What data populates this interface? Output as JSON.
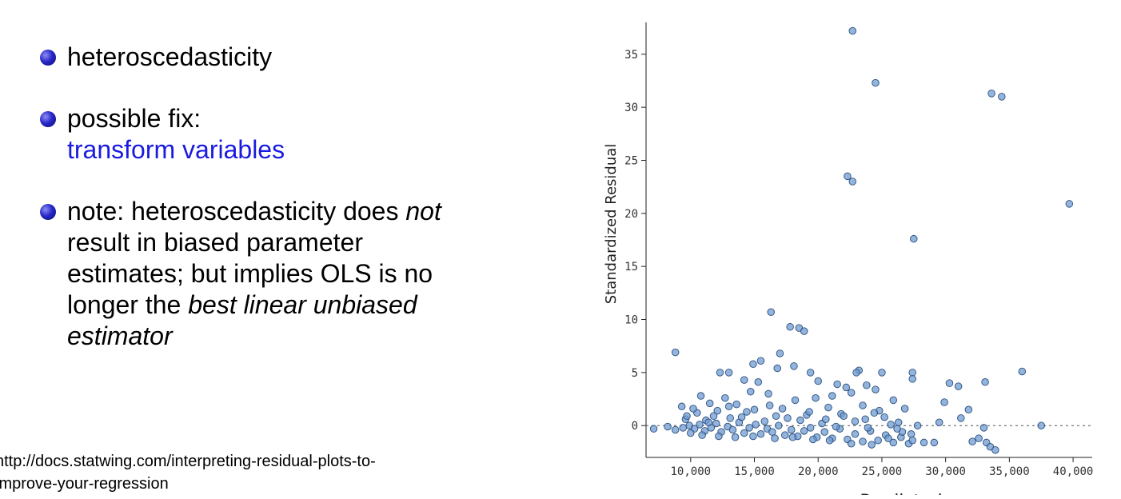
{
  "slide": {
    "bullets": [
      {
        "text": "heteroscedasticity"
      },
      {
        "line1": "possible fix:",
        "line2": "transform variables"
      },
      {
        "t1": "note: heteroscedasticity does ",
        "t2": "not",
        "t3": "result in biased parameter",
        "t4": "estimates; but implies OLS is no",
        "t5": "longer the ",
        "t6": "best linear unbiased",
        "t7": "estimator"
      }
    ],
    "source_line1": "http://docs.statwing.com/interpreting-residual-plots-to-",
    "source_line2": "improve-your-regression"
  },
  "colors": {
    "bullet": "#2828c8",
    "link": "#1a1ae0",
    "point_fill": "#6f9bd1",
    "point_stroke": "#2b4f7e"
  },
  "chart_data": {
    "type": "scatter",
    "xlabel": "Predicted",
    "ylabel": "Standardized Residual",
    "xlim": [
      6500,
      41500
    ],
    "ylim": [
      -3,
      38
    ],
    "xticks": [
      10000,
      15000,
      20000,
      25000,
      30000,
      35000,
      40000
    ],
    "xtick_labels": [
      "10,000",
      "15,000",
      "20,000",
      "25,000",
      "30,000",
      "35,000",
      "40,000"
    ],
    "yticks": [
      0,
      5,
      10,
      15,
      20,
      25,
      30,
      35
    ],
    "ytick_labels": [
      "0",
      "5",
      "10",
      "15",
      "20",
      "25",
      "30",
      "35"
    ],
    "reference_line_y": 0,
    "points": [
      [
        22700,
        37.2
      ],
      [
        24500,
        32.3
      ],
      [
        33600,
        31.3
      ],
      [
        22300,
        23.5
      ],
      [
        22700,
        23.0
      ],
      [
        39700,
        20.9
      ],
      [
        27500,
        17.6
      ],
      [
        16300,
        10.7
      ],
      [
        17800,
        9.3
      ],
      [
        18500,
        9.2
      ],
      [
        18900,
        8.9
      ],
      [
        8800,
        6.9
      ],
      [
        17000,
        6.8
      ],
      [
        15500,
        6.1
      ],
      [
        14900,
        5.8
      ],
      [
        18100,
        5.6
      ],
      [
        16800,
        5.4
      ],
      [
        12300,
        5.0
      ],
      [
        13000,
        5.0
      ],
      [
        19400,
        5.0
      ],
      [
        23200,
        5.2
      ],
      [
        23000,
        5.0
      ],
      [
        25000,
        5.0
      ],
      [
        27400,
        5.0
      ],
      [
        27400,
        4.4
      ],
      [
        36000,
        5.1
      ],
      [
        14200,
        4.3
      ],
      [
        15300,
        4.1
      ],
      [
        20000,
        4.2
      ],
      [
        30300,
        4.0
      ],
      [
        31000,
        3.7
      ],
      [
        33100,
        4.1
      ],
      [
        21500,
        3.9
      ],
      [
        22200,
        3.6
      ],
      [
        23800,
        3.8
      ],
      [
        24500,
        3.4
      ],
      [
        14700,
        3.2
      ],
      [
        16100,
        3.0
      ],
      [
        10800,
        2.8
      ],
      [
        12700,
        2.6
      ],
      [
        18200,
        2.4
      ],
      [
        19800,
        2.6
      ],
      [
        21100,
        2.8
      ],
      [
        22600,
        3.1
      ],
      [
        25900,
        2.4
      ],
      [
        29900,
        2.2
      ],
      [
        31800,
        1.5
      ],
      [
        9300,
        1.8
      ],
      [
        11500,
        2.1
      ],
      [
        13600,
        2.0
      ],
      [
        17200,
        1.6
      ],
      [
        20800,
        1.7
      ],
      [
        23500,
        1.9
      ],
      [
        24800,
        1.4
      ],
      [
        26800,
        1.6
      ],
      [
        31200,
        0.7
      ],
      [
        10500,
        1.2
      ],
      [
        12100,
        1.4
      ],
      [
        14400,
        1.3
      ],
      [
        16700,
        0.9
      ],
      [
        19100,
        1.0
      ],
      [
        21800,
        1.1
      ],
      [
        23700,
        0.6
      ],
      [
        25200,
        0.8
      ],
      [
        29500,
        0.3
      ],
      [
        9600,
        0.6
      ],
      [
        11200,
        0.5
      ],
      [
        13100,
        0.7
      ],
      [
        15800,
        0.4
      ],
      [
        18600,
        0.5
      ],
      [
        20300,
        0.2
      ],
      [
        22900,
        0.4
      ],
      [
        26300,
        0.3
      ],
      [
        7100,
        -0.3
      ],
      [
        8200,
        -0.1
      ],
      [
        8800,
        -0.4
      ],
      [
        9400,
        -0.2
      ],
      [
        9900,
        0.0
      ],
      [
        10300,
        -0.3
      ],
      [
        10700,
        0.1
      ],
      [
        11100,
        -0.5
      ],
      [
        11600,
        -0.2
      ],
      [
        12000,
        0.2
      ],
      [
        12400,
        -0.6
      ],
      [
        12900,
        -0.1
      ],
      [
        13300,
        -0.4
      ],
      [
        13800,
        0.3
      ],
      [
        14200,
        -0.7
      ],
      [
        14600,
        -0.2
      ],
      [
        15100,
        0.1
      ],
      [
        15500,
        -0.8
      ],
      [
        16000,
        -0.3
      ],
      [
        16400,
        -0.6
      ],
      [
        16900,
        0.0
      ],
      [
        17400,
        -0.9
      ],
      [
        17900,
        -0.4
      ],
      [
        18400,
        -1.0
      ],
      [
        18900,
        -0.5
      ],
      [
        19400,
        -0.2
      ],
      [
        19900,
        -1.1
      ],
      [
        20500,
        -0.6
      ],
      [
        21100,
        -1.2
      ],
      [
        21700,
        -0.3
      ],
      [
        22300,
        -1.3
      ],
      [
        22900,
        -0.8
      ],
      [
        23500,
        -1.5
      ],
      [
        24100,
        -0.5
      ],
      [
        24700,
        -1.4
      ],
      [
        25300,
        -0.9
      ],
      [
        25900,
        -1.6
      ],
      [
        26500,
        -1.1
      ],
      [
        27100,
        -1.7
      ],
      [
        27400,
        -1.4
      ],
      [
        28300,
        -1.6
      ],
      [
        29100,
        -1.6
      ],
      [
        32100,
        -1.5
      ],
      [
        32600,
        -1.2
      ],
      [
        33000,
        -0.2
      ],
      [
        33200,
        -1.6
      ],
      [
        33500,
        -2.0
      ],
      [
        33900,
        -2.3
      ],
      [
        37500,
        0.0
      ],
      [
        34400,
        31.0
      ],
      [
        9700,
        0.9
      ],
      [
        10200,
        1.6
      ],
      [
        11800,
        0.9
      ],
      [
        13000,
        1.8
      ],
      [
        14000,
        0.8
      ],
      [
        15000,
        1.5
      ],
      [
        16200,
        1.9
      ],
      [
        17600,
        0.7
      ],
      [
        19300,
        1.3
      ],
      [
        20600,
        0.6
      ],
      [
        21400,
        -0.1
      ],
      [
        22000,
        0.9
      ],
      [
        23900,
        -0.2
      ],
      [
        24400,
        1.2
      ],
      [
        25700,
        0.1
      ],
      [
        26600,
        -0.6
      ],
      [
        27800,
        0.0
      ],
      [
        10000,
        -0.7
      ],
      [
        10900,
        -0.9
      ],
      [
        11400,
        0.3
      ],
      [
        12200,
        -1.0
      ],
      [
        13500,
        -1.1
      ],
      [
        14900,
        -1.0
      ],
      [
        16600,
        -1.2
      ],
      [
        18000,
        -1.1
      ],
      [
        19600,
        -1.3
      ],
      [
        20900,
        -1.4
      ],
      [
        22600,
        -1.7
      ],
      [
        24200,
        -1.8
      ],
      [
        25500,
        -1.2
      ],
      [
        26200,
        -0.3
      ],
      [
        27300,
        -0.8
      ]
    ]
  }
}
